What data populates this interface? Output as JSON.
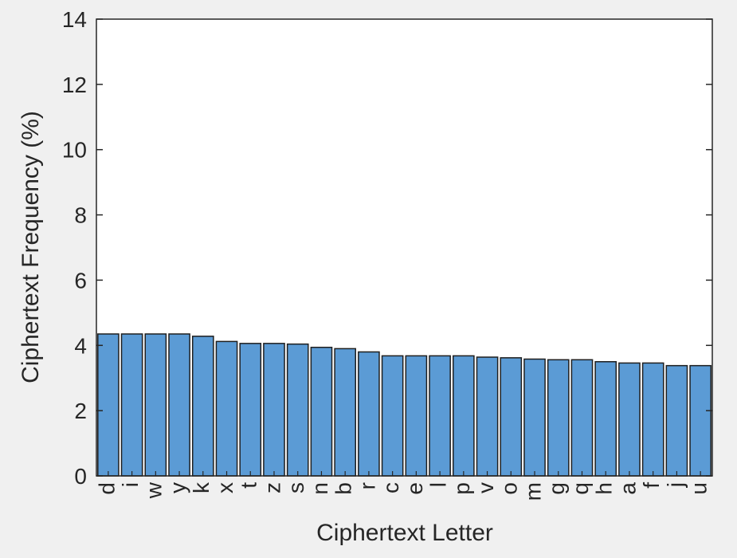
{
  "chart_data": {
    "type": "bar",
    "xlabel": "Ciphertext Letter",
    "ylabel": "Ciphertext Frequency (%)",
    "ylim": [
      0,
      14
    ],
    "yticks": [
      "0",
      "2",
      "4",
      "6",
      "8",
      "10",
      "12",
      "14"
    ],
    "categories": [
      "d",
      "i",
      "w",
      "y",
      "k",
      "x",
      "t",
      "z",
      "s",
      "n",
      "b",
      "r",
      "c",
      "e",
      "l",
      "p",
      "v",
      "o",
      "m",
      "g",
      "q",
      "h",
      "a",
      "f",
      "j",
      "u"
    ],
    "values": [
      4.35,
      4.35,
      4.35,
      4.35,
      4.28,
      4.12,
      4.06,
      4.06,
      4.04,
      3.94,
      3.9,
      3.8,
      3.68,
      3.68,
      3.68,
      3.68,
      3.64,
      3.62,
      3.58,
      3.56,
      3.56,
      3.5,
      3.46,
      3.46,
      3.38,
      3.38
    ],
    "bar_color": "#5b9bd5",
    "bar_edge_color": "#1f1f1f",
    "grid": false,
    "legend": "none"
  }
}
